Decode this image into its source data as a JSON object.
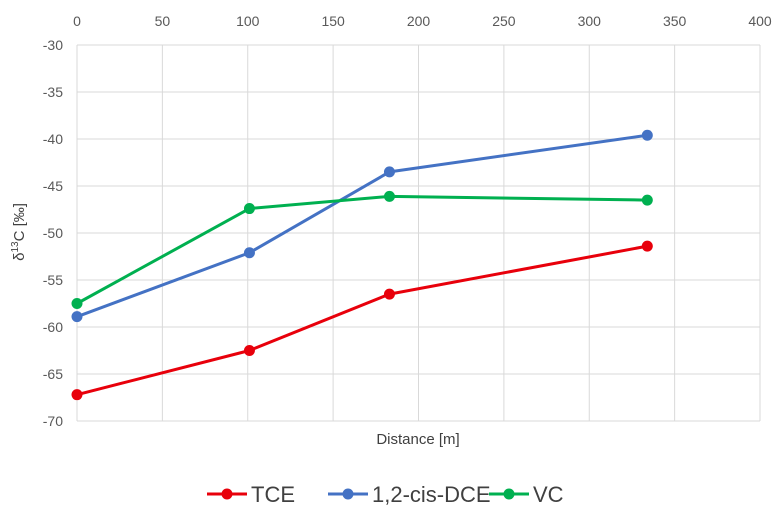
{
  "chart_data": {
    "type": "line",
    "title": "",
    "xlabel": "Distance [m]",
    "ylabel_parts": {
      "pre": "δ",
      "sup": "13",
      "post": "C [‰]"
    },
    "xlim": [
      0,
      400
    ],
    "ylim": [
      -70,
      -30
    ],
    "x_ticks": [
      "0",
      "50",
      "100",
      "150",
      "200",
      "250",
      "300",
      "350",
      "400"
    ],
    "y_ticks": [
      "-30",
      "-35",
      "-40",
      "-45",
      "-50",
      "-55",
      "-60",
      "-65",
      "-70"
    ],
    "x_tick_values": [
      0,
      50,
      100,
      150,
      200,
      250,
      300,
      350,
      400
    ],
    "y_tick_values": [
      -30,
      -35,
      -40,
      -45,
      -50,
      -55,
      -60,
      -65,
      -70
    ],
    "x_axis_position": "top",
    "grid": true,
    "legend_position": "bottom",
    "series": [
      {
        "name": "TCE",
        "color": "#e8000b",
        "x": [
          0,
          101,
          183,
          334
        ],
        "y": [
          -67.2,
          -62.5,
          -56.5,
          -51.4
        ]
      },
      {
        "name": "1,2-cis-DCE",
        "color": "#4472c4",
        "x": [
          0,
          101,
          183,
          334
        ],
        "y": [
          -58.9,
          -52.1,
          -43.5,
          -39.6
        ]
      },
      {
        "name": "VC",
        "color": "#00b050",
        "x": [
          0,
          101,
          183,
          334
        ],
        "y": [
          -57.5,
          -47.4,
          -46.1,
          -46.5
        ]
      }
    ]
  }
}
